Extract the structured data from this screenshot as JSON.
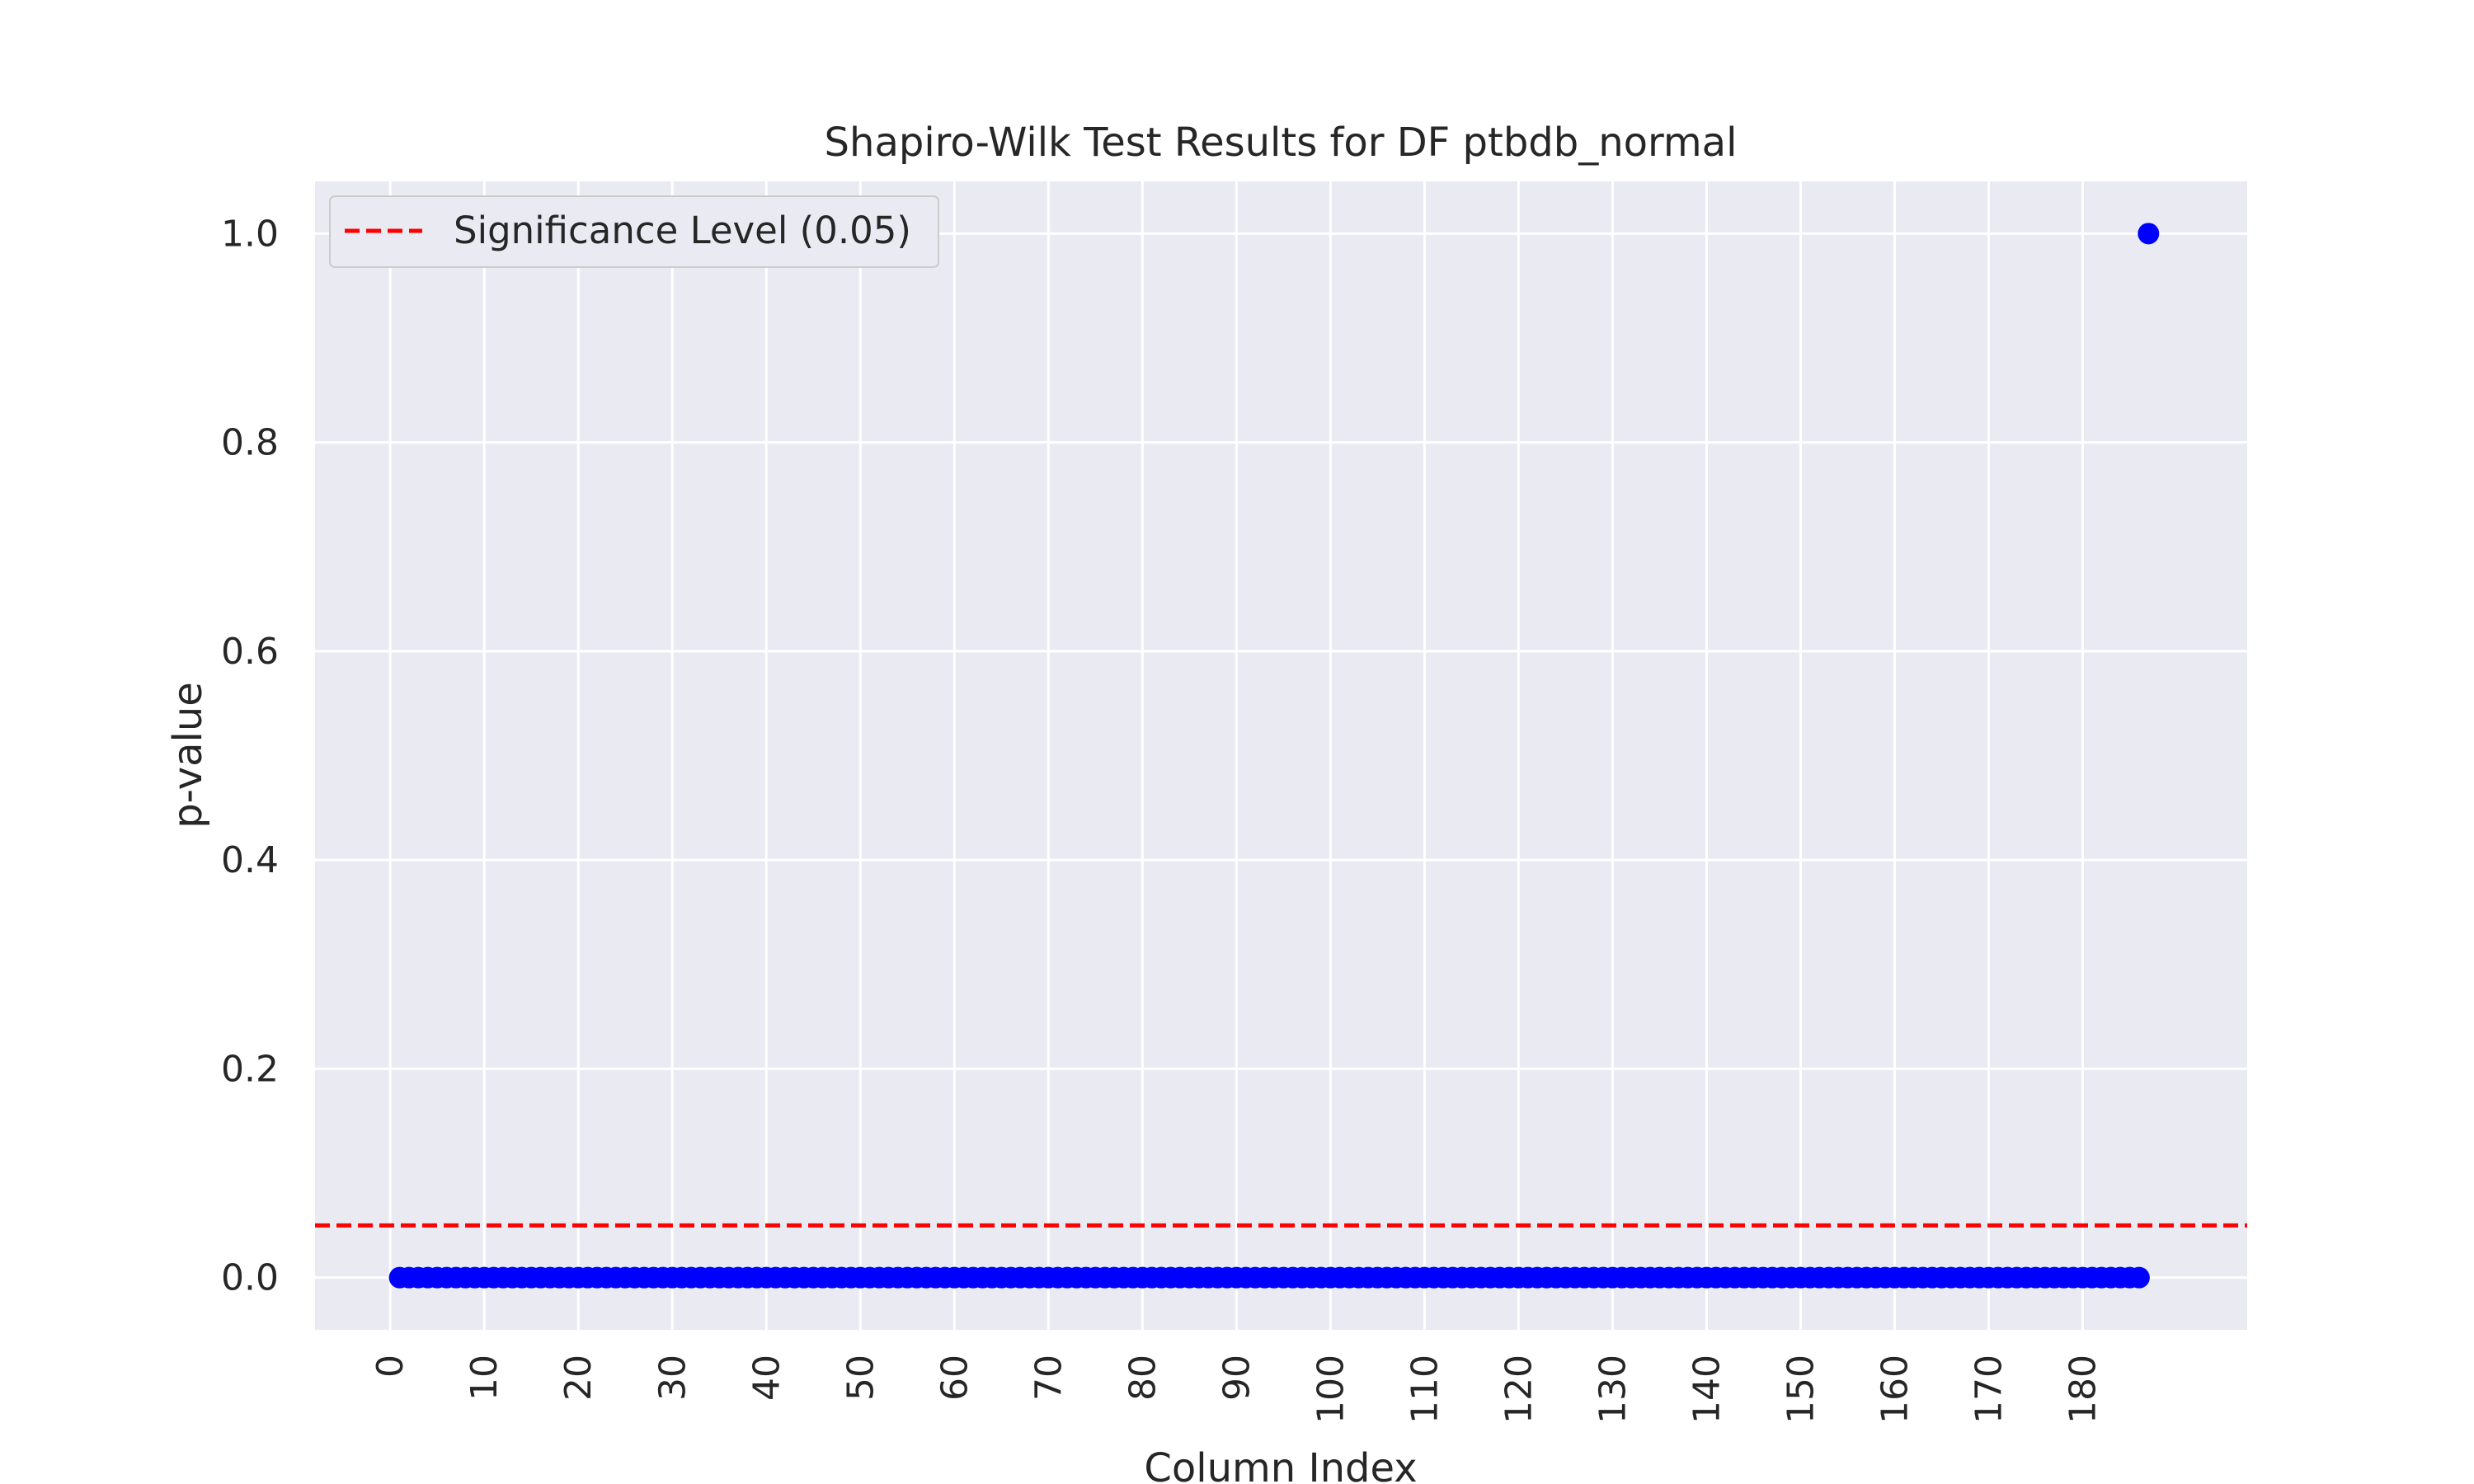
{
  "chart_data": {
    "type": "scatter",
    "title": "Shapiro-Wilk Test Results for DF ptbdb_normal",
    "xlabel": "Column Index",
    "ylabel": "p-value",
    "xlim": [
      -8,
      197.5
    ],
    "ylim": [
      -0.05,
      1.05
    ],
    "x_ticks": [
      0,
      10,
      20,
      30,
      40,
      50,
      60,
      70,
      80,
      90,
      100,
      110,
      120,
      130,
      140,
      150,
      160,
      170,
      180
    ],
    "y_ticks": [
      "0.0",
      "0.2",
      "0.4",
      "0.6",
      "0.8",
      "1.0"
    ],
    "grid": true,
    "legend": {
      "position": "top-left",
      "entries": [
        "Significance Level (0.05)"
      ]
    },
    "series": [
      {
        "marker": "circle",
        "color": "#0000ff",
        "x_start": 1,
        "x_end": 186,
        "y_all_except_last": 0.0,
        "last_point": {
          "x": 187,
          "y": 1.0
        }
      }
    ],
    "reference_lines": [
      {
        "orientation": "horizontal",
        "y": 0.05,
        "style": "dashed",
        "color": "#ff0000",
        "label": "Significance Level (0.05)"
      }
    ],
    "colors": {
      "background": "#eaeaf2",
      "grid": "#ffffff",
      "points": "#0000ff",
      "threshold": "#ff0000"
    }
  }
}
